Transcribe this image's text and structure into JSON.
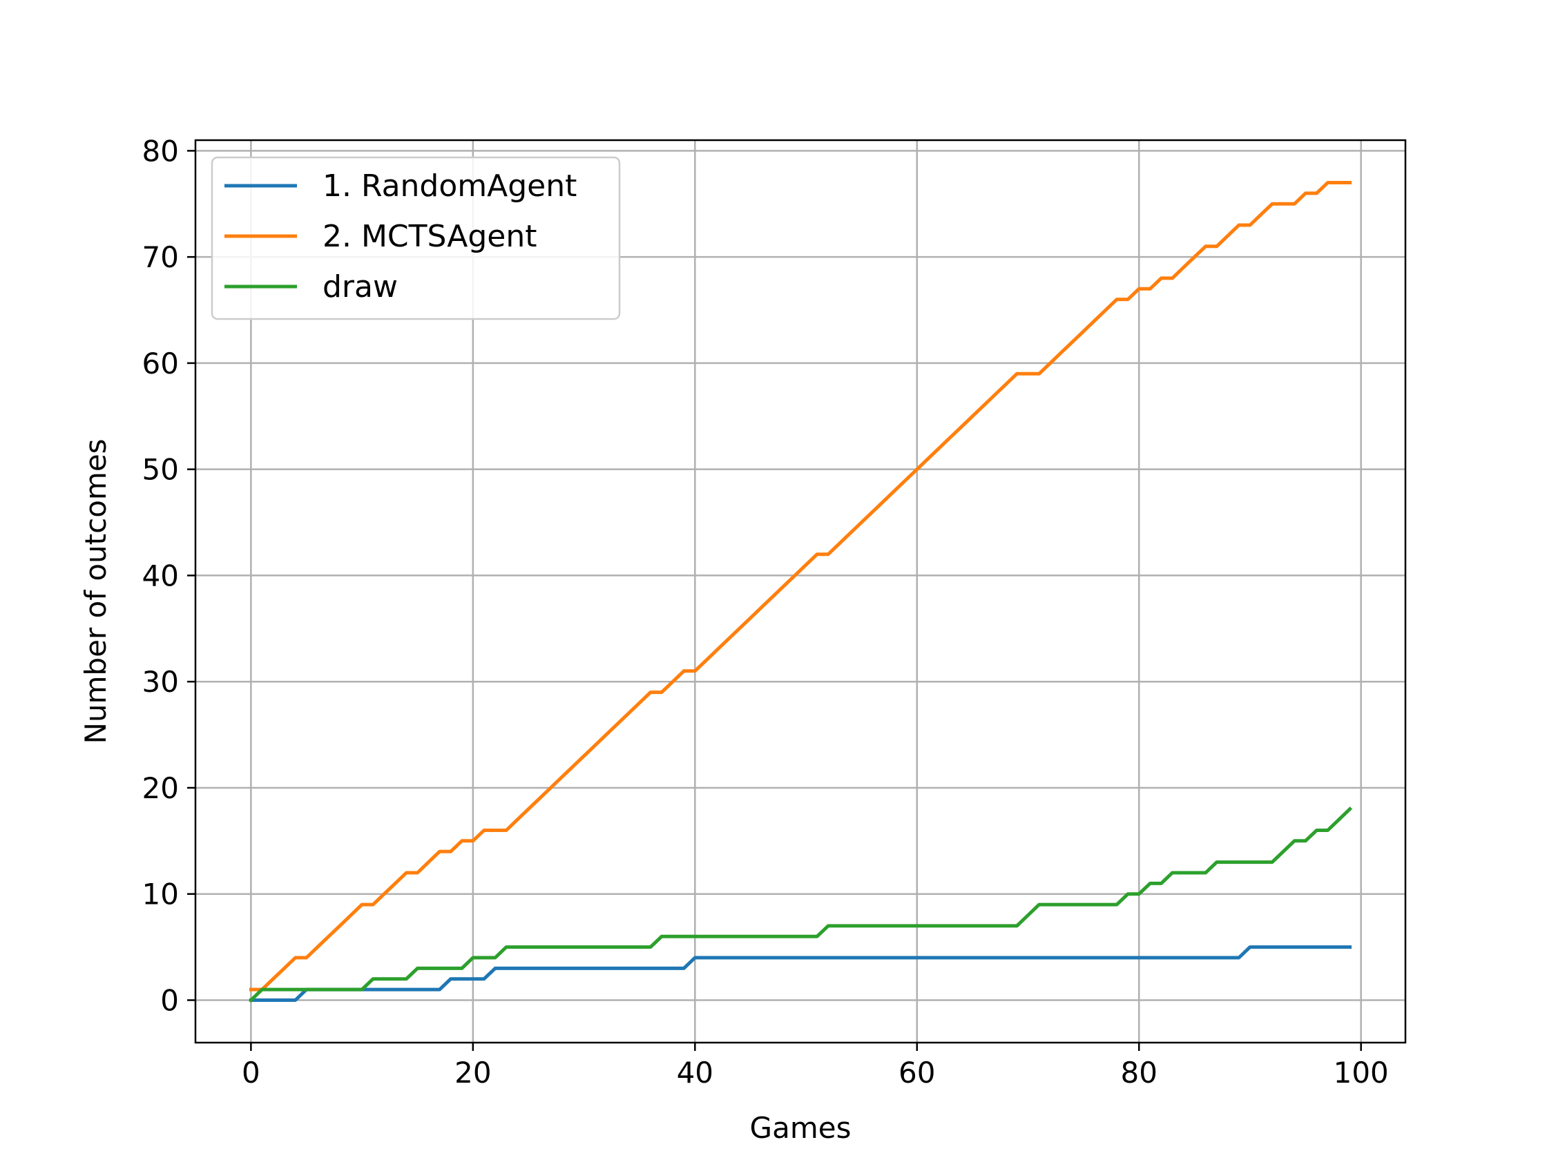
{
  "chart_data": {
    "type": "line",
    "title": "",
    "xlabel": "Games",
    "ylabel": "Number of outcomes",
    "xlim": [
      -5,
      104
    ],
    "ylim": [
      -4,
      81
    ],
    "xticks": [
      0,
      20,
      40,
      60,
      80,
      100
    ],
    "yticks": [
      0,
      10,
      20,
      30,
      40,
      50,
      60,
      70,
      80
    ],
    "xtick_labels": [
      "0",
      "20",
      "40",
      "60",
      "80",
      "100"
    ],
    "ytick_labels": [
      "0",
      "10",
      "20",
      "30",
      "40",
      "50",
      "60",
      "70",
      "80"
    ],
    "grid": true,
    "legend_position": "upper-left",
    "x": [
      0,
      1,
      2,
      3,
      4,
      5,
      6,
      7,
      8,
      9,
      10,
      11,
      12,
      13,
      14,
      15,
      16,
      17,
      18,
      19,
      20,
      21,
      22,
      23,
      24,
      25,
      26,
      27,
      28,
      29,
      30,
      31,
      32,
      33,
      34,
      35,
      36,
      37,
      38,
      39,
      40,
      41,
      42,
      43,
      44,
      45,
      46,
      47,
      48,
      49,
      50,
      51,
      52,
      53,
      54,
      55,
      56,
      57,
      58,
      59,
      60,
      61,
      62,
      63,
      64,
      65,
      66,
      67,
      68,
      69,
      70,
      71,
      72,
      73,
      74,
      75,
      76,
      77,
      78,
      79,
      80,
      81,
      82,
      83,
      84,
      85,
      86,
      87,
      88,
      89,
      90,
      91,
      92,
      93,
      94,
      95,
      96,
      97,
      98,
      99
    ],
    "series": [
      {
        "name": "1. RandomAgent",
        "color": "#1f77b4",
        "values": [
          0,
          0,
          0,
          0,
          0,
          1,
          1,
          1,
          1,
          1,
          1,
          1,
          1,
          1,
          1,
          1,
          1,
          1,
          2,
          2,
          2,
          2,
          3,
          3,
          3,
          3,
          3,
          3,
          3,
          3,
          3,
          3,
          3,
          3,
          3,
          3,
          3,
          3,
          3,
          3,
          4,
          4,
          4,
          4,
          4,
          4,
          4,
          4,
          4,
          4,
          4,
          4,
          4,
          4,
          4,
          4,
          4,
          4,
          4,
          4,
          4,
          4,
          4,
          4,
          4,
          4,
          4,
          4,
          4,
          4,
          4,
          4,
          4,
          4,
          4,
          4,
          4,
          4,
          4,
          4,
          4,
          4,
          4,
          4,
          4,
          4,
          4,
          4,
          4,
          4,
          5,
          5,
          5,
          5,
          5,
          5,
          5,
          5,
          5,
          5
        ]
      },
      {
        "name": "2. MCTSAgent",
        "color": "#ff7f0e",
        "values": [
          1,
          1,
          2,
          3,
          4,
          4,
          5,
          6,
          7,
          8,
          9,
          9,
          10,
          11,
          12,
          12,
          13,
          14,
          14,
          15,
          15,
          16,
          16,
          16,
          17,
          18,
          19,
          20,
          21,
          22,
          23,
          24,
          25,
          26,
          27,
          28,
          29,
          29,
          30,
          31,
          31,
          32,
          33,
          34,
          35,
          36,
          37,
          38,
          39,
          40,
          41,
          42,
          42,
          43,
          44,
          45,
          46,
          47,
          48,
          49,
          50,
          51,
          52,
          53,
          54,
          55,
          56,
          57,
          58,
          59,
          59,
          59,
          60,
          61,
          62,
          63,
          64,
          65,
          66,
          66,
          67,
          67,
          68,
          68,
          69,
          70,
          71,
          71,
          72,
          73,
          73,
          74,
          75,
          75,
          75,
          76,
          76,
          77,
          77,
          77
        ]
      },
      {
        "name": "draw",
        "color": "#2ca02c",
        "values": [
          0,
          1,
          1,
          1,
          1,
          1,
          1,
          1,
          1,
          1,
          1,
          2,
          2,
          2,
          2,
          3,
          3,
          3,
          3,
          3,
          4,
          4,
          4,
          5,
          5,
          5,
          5,
          5,
          5,
          5,
          5,
          5,
          5,
          5,
          5,
          5,
          5,
          6,
          6,
          6,
          6,
          6,
          6,
          6,
          6,
          6,
          6,
          6,
          6,
          6,
          6,
          6,
          7,
          7,
          7,
          7,
          7,
          7,
          7,
          7,
          7,
          7,
          7,
          7,
          7,
          7,
          7,
          7,
          7,
          7,
          8,
          9,
          9,
          9,
          9,
          9,
          9,
          9,
          9,
          10,
          10,
          11,
          11,
          12,
          12,
          12,
          12,
          13,
          13,
          13,
          13,
          13,
          13,
          14,
          15,
          15,
          16,
          16,
          17,
          18
        ]
      }
    ]
  }
}
